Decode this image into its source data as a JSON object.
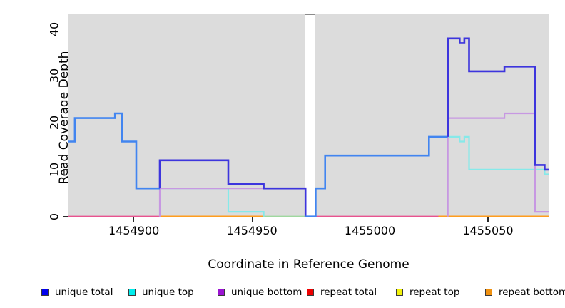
{
  "chart_data": {
    "type": "line",
    "subtype": "step-coverage",
    "title": "",
    "xlabel": "Coordinate in Reference Genome",
    "ylabel": "Read Coverage Depth",
    "xlim": [
      1454872,
      1455076
    ],
    "ylim": [
      0,
      43
    ],
    "grid": false,
    "panel_background": "#dcdcdc",
    "x_ticks": [
      {
        "value": 1454900,
        "label": "1454900"
      },
      {
        "value": 1454950,
        "label": "1454950"
      },
      {
        "value": 1455000,
        "label": "1455000"
      },
      {
        "value": 1455050,
        "label": "1455050"
      }
    ],
    "y_ticks": [
      {
        "value": 0,
        "label": "0"
      },
      {
        "value": 10,
        "label": "10"
      },
      {
        "value": 20,
        "label": "20"
      },
      {
        "value": 30,
        "label": "30"
      },
      {
        "value": 40,
        "label": "40"
      }
    ],
    "masked_gap": {
      "x_start": 1454972.7,
      "x_end": 1454977,
      "fill": "#ffffff",
      "cap_color": "#8b8b8b"
    },
    "series": [
      {
        "name": "unique total",
        "step_points": [
          [
            1454872,
            16
          ],
          [
            1454875,
            21
          ],
          [
            1454892,
            22
          ],
          [
            1454895,
            16
          ],
          [
            1454901,
            6
          ],
          [
            1454911,
            12
          ],
          [
            1454940,
            7
          ],
          [
            1454955,
            6
          ],
          [
            1454973,
            0
          ],
          [
            1454977,
            6
          ],
          [
            1454981,
            13
          ],
          [
            1455025,
            17
          ],
          [
            1455033,
            38
          ],
          [
            1455038,
            37
          ],
          [
            1455040,
            38
          ],
          [
            1455042,
            31
          ],
          [
            1455057,
            32
          ],
          [
            1455070,
            11
          ],
          [
            1455074,
            10
          ],
          [
            1455076,
            10
          ]
        ]
      },
      {
        "name": "unique top",
        "step_points": [
          [
            1454872,
            16
          ],
          [
            1454875,
            21
          ],
          [
            1454892,
            22
          ],
          [
            1454895,
            16
          ],
          [
            1454901,
            6
          ],
          [
            1454940,
            1
          ],
          [
            1454955,
            0
          ],
          [
            1454977,
            6
          ],
          [
            1454981,
            13
          ],
          [
            1455025,
            17
          ],
          [
            1455038,
            16
          ],
          [
            1455040,
            17
          ],
          [
            1455042,
            10
          ],
          [
            1455074,
            9
          ],
          [
            1455076,
            9
          ]
        ]
      },
      {
        "name": "unique bottom",
        "step_points": [
          [
            1454872,
            0
          ],
          [
            1454911,
            6
          ],
          [
            1454973,
            0
          ],
          [
            1455033,
            21
          ],
          [
            1455057,
            22
          ],
          [
            1455070,
            1
          ],
          [
            1455076,
            1
          ]
        ]
      },
      {
        "name": "repeat total",
        "step_points": [
          [
            1454872,
            0
          ],
          [
            1455076,
            0
          ]
        ]
      },
      {
        "name": "repeat top",
        "step_points": [
          [
            1454872,
            0
          ],
          [
            1455076,
            0
          ]
        ]
      },
      {
        "name": "repeat bottom",
        "step_points": [
          [
            1454872,
            0
          ],
          [
            1455076,
            0
          ]
        ]
      }
    ],
    "render_polylines": [
      {
        "name": "baseline-pink-left",
        "color": "#e8538f",
        "width": 2.2,
        "points": [
          [
            1454872,
            0
          ],
          [
            1454911,
            0
          ]
        ]
      },
      {
        "name": "baseline-orange-left",
        "color": "#ff9d1e",
        "width": 2.4,
        "points": [
          [
            1454911,
            0
          ],
          [
            1454955,
            0
          ]
        ]
      },
      {
        "name": "baseline-green",
        "color": "#9fd89f",
        "width": 2.2,
        "points": [
          [
            1454955,
            0
          ],
          [
            1454972.7,
            0
          ]
        ]
      },
      {
        "name": "baseline-pink-right",
        "color": "#e8538f",
        "width": 2.2,
        "points": [
          [
            1454977,
            0
          ],
          [
            1455029,
            0
          ]
        ]
      },
      {
        "name": "baseline-orange-right",
        "color": "#ff9d1e",
        "width": 2.4,
        "points": [
          [
            1455029,
            0
          ],
          [
            1455076,
            0
          ]
        ]
      },
      {
        "name": "unique-top-left",
        "color": "#86e9e9",
        "width": 2.2,
        "points": [
          [
            1454911,
            6
          ],
          [
            1454940,
            6
          ],
          [
            1454940,
            1
          ],
          [
            1454955,
            1
          ],
          [
            1454955,
            0
          ]
        ]
      },
      {
        "name": "unique-bottom-left",
        "color": "#c798e2",
        "width": 2.2,
        "points": [
          [
            1454911,
            0
          ],
          [
            1454911,
            6
          ],
          [
            1454972.7,
            6
          ]
        ]
      },
      {
        "name": "unique-top-right",
        "color": "#86e9e9",
        "width": 2.2,
        "points": [
          [
            1455033,
            17
          ],
          [
            1455038,
            17
          ],
          [
            1455038,
            16
          ],
          [
            1455040,
            16
          ],
          [
            1455040,
            17
          ],
          [
            1455042,
            17
          ],
          [
            1455042,
            10
          ],
          [
            1455074,
            10
          ],
          [
            1455074,
            9
          ],
          [
            1455076,
            9
          ]
        ]
      },
      {
        "name": "unique-bottom-right",
        "color": "#c798e2",
        "width": 2.2,
        "points": [
          [
            1455033,
            0
          ],
          [
            1455033,
            21
          ],
          [
            1455057,
            21
          ],
          [
            1455057,
            22
          ],
          [
            1455070,
            22
          ],
          [
            1455070,
            1
          ],
          [
            1455076,
            1
          ]
        ]
      },
      {
        "name": "unique-total-light-left",
        "color": "#4285f0",
        "width": 2.6,
        "points": [
          [
            1454872,
            16
          ],
          [
            1454875,
            16
          ],
          [
            1454875,
            21
          ],
          [
            1454892,
            21
          ],
          [
            1454892,
            22
          ],
          [
            1454895,
            22
          ],
          [
            1454895,
            16
          ],
          [
            1454901,
            16
          ],
          [
            1454901,
            6
          ],
          [
            1454911,
            6
          ]
        ]
      },
      {
        "name": "unique-total-dark-left",
        "color": "#3d35dd",
        "width": 2.6,
        "points": [
          [
            1454911,
            6
          ],
          [
            1454911,
            12
          ],
          [
            1454940,
            12
          ],
          [
            1454940,
            7
          ],
          [
            1454955,
            7
          ],
          [
            1454955,
            6
          ],
          [
            1454972.7,
            6
          ],
          [
            1454972.7,
            0
          ]
        ]
      },
      {
        "name": "unique-total-light-right",
        "color": "#4285f0",
        "width": 2.6,
        "points": [
          [
            1454972.7,
            0
          ],
          [
            1454977,
            0
          ],
          [
            1454977,
            6
          ],
          [
            1454981,
            6
          ],
          [
            1454981,
            13
          ],
          [
            1455025,
            13
          ],
          [
            1455025,
            17
          ],
          [
            1455033,
            17
          ]
        ]
      },
      {
        "name": "unique-total-dark-right",
        "color": "#3d35dd",
        "width": 2.6,
        "points": [
          [
            1455033,
            17
          ],
          [
            1455033,
            38
          ],
          [
            1455038,
            38
          ],
          [
            1455038,
            37
          ],
          [
            1455040,
            37
          ],
          [
            1455040,
            38
          ],
          [
            1455042,
            38
          ],
          [
            1455042,
            31
          ],
          [
            1455057,
            31
          ],
          [
            1455057,
            32
          ],
          [
            1455070,
            32
          ],
          [
            1455070,
            11
          ],
          [
            1455074,
            11
          ],
          [
            1455074,
            10
          ],
          [
            1455076,
            10
          ]
        ]
      }
    ]
  },
  "legend": {
    "position": "bottom",
    "swatch_border": "#3a3a3a",
    "items": [
      {
        "label": "unique total",
        "fill": "#0000ee"
      },
      {
        "label": "unique top",
        "fill": "#00eded"
      },
      {
        "label": "unique bottom",
        "fill": "#9b13d2"
      },
      {
        "label": "repeat total",
        "fill": "#ee0000"
      },
      {
        "label": "repeat top",
        "fill": "#f2f20a"
      },
      {
        "label": "repeat bottom",
        "fill": "#f09110"
      }
    ]
  }
}
